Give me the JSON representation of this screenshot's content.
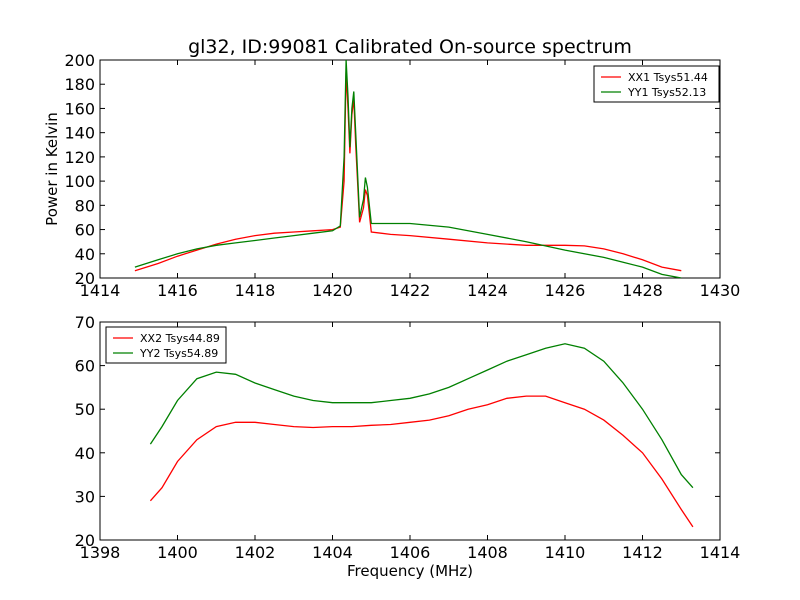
{
  "chart_data": [
    {
      "type": "line",
      "title": "gl32, ID:99081 Calibrated On-source spectrum",
      "xlabel": "",
      "ylabel": "Power in Kelvin",
      "xlim": [
        1414,
        1430
      ],
      "ylim": [
        20,
        200
      ],
      "xticks": [
        "1414",
        "1416",
        "1418",
        "1420",
        "1422",
        "1424",
        "1426",
        "1428",
        "1430"
      ],
      "yticks": [
        "20",
        "40",
        "60",
        "80",
        "100",
        "120",
        "140",
        "160",
        "180",
        "200"
      ],
      "legend_position": "top-right",
      "grid": false,
      "series": [
        {
          "name": "XX1 Tsys51.44",
          "color": "#ff0000",
          "points": [
            [
              1414.9,
              26
            ],
            [
              1415.5,
              32
            ],
            [
              1416.0,
              38
            ],
            [
              1416.5,
              43
            ],
            [
              1417.0,
              48
            ],
            [
              1417.5,
              52
            ],
            [
              1418.0,
              55
            ],
            [
              1418.5,
              57
            ],
            [
              1419.0,
              58
            ],
            [
              1419.5,
              59
            ],
            [
              1420.0,
              60
            ],
            [
              1420.2,
              62
            ],
            [
              1420.3,
              100
            ],
            [
              1420.35,
              190
            ],
            [
              1420.4,
              160
            ],
            [
              1420.45,
              123
            ],
            [
              1420.5,
              155
            ],
            [
              1420.55,
              168
            ],
            [
              1420.6,
              130
            ],
            [
              1420.7,
              66
            ],
            [
              1420.8,
              78
            ],
            [
              1420.85,
              93
            ],
            [
              1420.9,
              88
            ],
            [
              1421.0,
              58
            ],
            [
              1421.5,
              56
            ],
            [
              1422.0,
              55
            ],
            [
              1423.0,
              52
            ],
            [
              1424.0,
              49
            ],
            [
              1425.0,
              47
            ],
            [
              1426.0,
              47
            ],
            [
              1426.5,
              46.5
            ],
            [
              1427.0,
              44
            ],
            [
              1427.5,
              40
            ],
            [
              1428.0,
              35
            ],
            [
              1428.5,
              29
            ],
            [
              1429.0,
              26
            ]
          ]
        },
        {
          "name": "YY1 Tsys52.13",
          "color": "#008000",
          "points": [
            [
              1414.9,
              29
            ],
            [
              1415.5,
              35
            ],
            [
              1416.0,
              40
            ],
            [
              1416.5,
              44
            ],
            [
              1417.0,
              47
            ],
            [
              1417.5,
              49
            ],
            [
              1418.0,
              51
            ],
            [
              1418.5,
              53
            ],
            [
              1419.0,
              55
            ],
            [
              1419.5,
              57
            ],
            [
              1420.0,
              59
            ],
            [
              1420.2,
              63
            ],
            [
              1420.3,
              120
            ],
            [
              1420.35,
              200
            ],
            [
              1420.4,
              170
            ],
            [
              1420.45,
              128
            ],
            [
              1420.5,
              160
            ],
            [
              1420.55,
              174
            ],
            [
              1420.6,
              140
            ],
            [
              1420.7,
              70
            ],
            [
              1420.8,
              85
            ],
            [
              1420.85,
              103
            ],
            [
              1420.9,
              95
            ],
            [
              1421.0,
              65
            ],
            [
              1421.5,
              65
            ],
            [
              1422.0,
              65
            ],
            [
              1423.0,
              62
            ],
            [
              1424.0,
              56
            ],
            [
              1425.0,
              50
            ],
            [
              1426.0,
              43
            ],
            [
              1427.0,
              37
            ],
            [
              1427.5,
              33
            ],
            [
              1428.0,
              29
            ],
            [
              1428.5,
              23
            ],
            [
              1429.0,
              20
            ]
          ]
        }
      ]
    },
    {
      "type": "line",
      "title": "",
      "xlabel": "Frequency (MHz)",
      "ylabel": "",
      "xlim": [
        1398,
        1414
      ],
      "ylim": [
        20,
        70
      ],
      "xticks": [
        "1398",
        "1400",
        "1402",
        "1404",
        "1406",
        "1408",
        "1410",
        "1412",
        "1414"
      ],
      "yticks": [
        "20",
        "30",
        "40",
        "50",
        "60",
        "70"
      ],
      "legend_position": "top-left",
      "grid": false,
      "series": [
        {
          "name": "XX2 Tsys44.89",
          "color": "#ff0000",
          "points": [
            [
              1399.3,
              29
            ],
            [
              1399.6,
              32
            ],
            [
              1400.0,
              38
            ],
            [
              1400.5,
              43
            ],
            [
              1401.0,
              46
            ],
            [
              1401.5,
              47
            ],
            [
              1402.0,
              47
            ],
            [
              1402.5,
              46.5
            ],
            [
              1403.0,
              46
            ],
            [
              1403.5,
              45.8
            ],
            [
              1404.0,
              46
            ],
            [
              1404.5,
              46
            ],
            [
              1405.0,
              46.3
            ],
            [
              1405.5,
              46.5
            ],
            [
              1406.0,
              47
            ],
            [
              1406.5,
              47.5
            ],
            [
              1407.0,
              48.5
            ],
            [
              1407.5,
              50
            ],
            [
              1408.0,
              51
            ],
            [
              1408.5,
              52.5
            ],
            [
              1409.0,
              53
            ],
            [
              1409.5,
              53
            ],
            [
              1410.0,
              51.5
            ],
            [
              1410.5,
              50
            ],
            [
              1411.0,
              47.5
            ],
            [
              1411.5,
              44
            ],
            [
              1412.0,
              40
            ],
            [
              1412.5,
              34
            ],
            [
              1413.0,
              27
            ],
            [
              1413.3,
              23
            ]
          ]
        },
        {
          "name": "YY2 Tsys54.89",
          "color": "#008000",
          "points": [
            [
              1399.3,
              42
            ],
            [
              1399.6,
              46
            ],
            [
              1400.0,
              52
            ],
            [
              1400.5,
              57
            ],
            [
              1401.0,
              58.5
            ],
            [
              1401.5,
              58
            ],
            [
              1402.0,
              56
            ],
            [
              1402.5,
              54.5
            ],
            [
              1403.0,
              53
            ],
            [
              1403.5,
              52
            ],
            [
              1404.0,
              51.5
            ],
            [
              1404.5,
              51.5
            ],
            [
              1405.0,
              51.5
            ],
            [
              1405.5,
              52
            ],
            [
              1406.0,
              52.5
            ],
            [
              1406.5,
              53.5
            ],
            [
              1407.0,
              55
            ],
            [
              1407.5,
              57
            ],
            [
              1408.0,
              59
            ],
            [
              1408.5,
              61
            ],
            [
              1409.0,
              62.5
            ],
            [
              1409.5,
              64
            ],
            [
              1410.0,
              65
            ],
            [
              1410.5,
              64
            ],
            [
              1411.0,
              61
            ],
            [
              1411.5,
              56
            ],
            [
              1412.0,
              50
            ],
            [
              1412.5,
              43
            ],
            [
              1413.0,
              35
            ],
            [
              1413.3,
              32
            ]
          ]
        }
      ]
    }
  ]
}
